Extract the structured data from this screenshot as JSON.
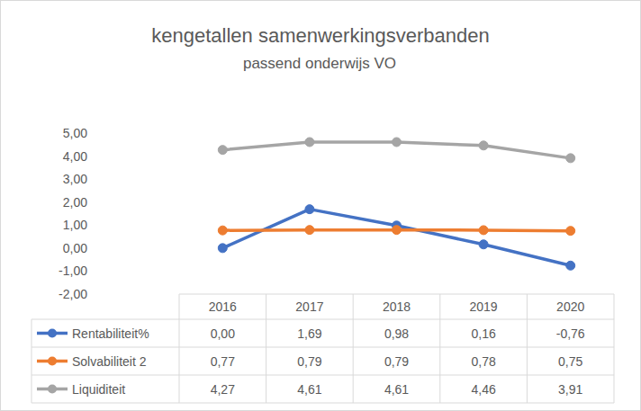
{
  "chart_data": {
    "type": "line",
    "title": "kengetallen samenwerkingsverbanden",
    "subtitle": "passend onderwijs VO",
    "categories": [
      "2016",
      "2017",
      "2018",
      "2019",
      "2020"
    ],
    "series": [
      {
        "name": "Rentabiliteit%",
        "color": "#4472c4",
        "marker": "circle",
        "values": [
          0.0,
          1.69,
          0.98,
          0.16,
          -0.76
        ],
        "value_labels": [
          "0,00",
          "1,69",
          "0,98",
          "0,16",
          "-0,76"
        ]
      },
      {
        "name": "Solvabiliteit 2",
        "color": "#ed7d31",
        "marker": "circle",
        "values": [
          0.77,
          0.79,
          0.79,
          0.78,
          0.75
        ],
        "value_labels": [
          "0,77",
          "0,79",
          "0,79",
          "0,78",
          "0,75"
        ]
      },
      {
        "name": "Liquiditeit",
        "color": "#a5a5a5",
        "marker": "circle",
        "values": [
          4.27,
          4.61,
          4.61,
          4.46,
          3.91
        ],
        "value_labels": [
          "4,27",
          "4,61",
          "4,61",
          "4,46",
          "3,91"
        ]
      }
    ],
    "ylim": [
      -2,
      5
    ],
    "yticks": [
      {
        "value": -2,
        "label": "-2,00"
      },
      {
        "value": -1,
        "label": "-1,00"
      },
      {
        "value": 0,
        "label": "0,00"
      },
      {
        "value": 1,
        "label": "1,00"
      },
      {
        "value": 2,
        "label": "2,00"
      },
      {
        "value": 3,
        "label": "3,00"
      },
      {
        "value": 4,
        "label": "4,00"
      },
      {
        "value": 5,
        "label": "5,00"
      }
    ],
    "grid": false
  }
}
